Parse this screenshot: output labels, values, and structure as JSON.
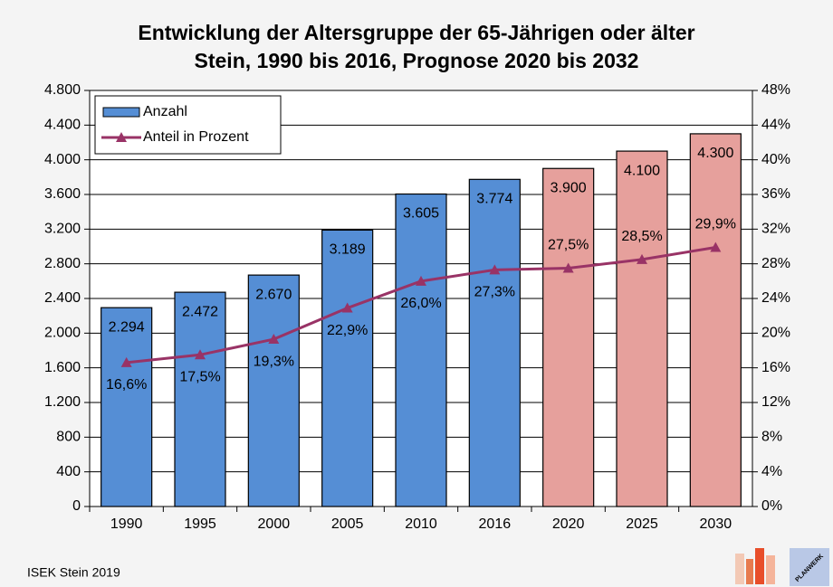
{
  "chart_data": {
    "type": "bar_line",
    "title": "Entwicklung der Altersgruppe der 65-Jährigen oder älter",
    "subtitle": "Stein, 1990 bis 2016, Prognose 2020 bis 2032",
    "categories": [
      "1990",
      "1995",
      "2000",
      "2005",
      "2010",
      "2016",
      "2020",
      "2025",
      "2030"
    ],
    "series": [
      {
        "name": "Anzahl",
        "type": "bar",
        "color": "#558ed5",
        "colors": [
          "#558ed5",
          "#558ed5",
          "#558ed5",
          "#558ed5",
          "#558ed5",
          "#558ed5",
          "#e6a09c",
          "#e6a09c",
          "#e6a09c"
        ],
        "values": [
          2294,
          2472,
          2670,
          3189,
          3605,
          3774,
          3900,
          4100,
          4300
        ],
        "value_labels": [
          "2.294",
          "2.472",
          "2.670",
          "3.189",
          "3.605",
          "3.774",
          "3.900",
          "4.100",
          "4.300"
        ]
      },
      {
        "name": "Anteil in Prozent",
        "type": "line",
        "axis": "y2",
        "color": "#993366",
        "values": [
          16.6,
          17.5,
          19.3,
          22.9,
          26.0,
          27.3,
          27.5,
          28.5,
          29.9
        ],
        "value_labels": [
          "16,6%",
          "17,5%",
          "19,3%",
          "22,9%",
          "26,0%",
          "27,3%",
          "27,5%",
          "28,5%",
          "29,9%"
        ]
      }
    ],
    "ylim": [
      0,
      4800
    ],
    "yticks": [
      0,
      400,
      800,
      {
        "value": 1200,
        "label": "1.200"
      },
      {
        "value": 1600,
        "label": "1.600"
      },
      {
        "value": 2000,
        "label": "2.000"
      },
      {
        "value": 2400,
        "label": "2.400"
      },
      {
        "value": 2800,
        "label": "2.800"
      },
      {
        "value": 3200,
        "label": "3.200"
      },
      {
        "value": 3600,
        "label": "3.600"
      },
      {
        "value": 4000,
        "label": "4.000"
      },
      {
        "value": 4400,
        "label": "4.400"
      },
      {
        "value": 4800,
        "label": "4.800"
      }
    ],
    "y2lim": [
      0,
      48
    ],
    "y2ticks": [
      {
        "value": 0,
        "label": "0%"
      },
      {
        "value": 4,
        "label": "4%"
      },
      {
        "value": 8,
        "label": "8%"
      },
      {
        "value": 12,
        "label": "12%"
      },
      {
        "value": 16,
        "label": "16%"
      },
      {
        "value": 20,
        "label": "20%"
      },
      {
        "value": 24,
        "label": "24%"
      },
      {
        "value": 28,
        "label": "28%"
      },
      {
        "value": 32,
        "label": "32%"
      },
      {
        "value": 36,
        "label": "36%"
      },
      {
        "value": 40,
        "label": "40%"
      },
      {
        "value": 44,
        "label": "44%"
      },
      {
        "value": 48,
        "label": "48%"
      }
    ],
    "grid": true,
    "legend": "top-left",
    "footer": "ISEK Stein 2019",
    "logo_text": "PLANWERK"
  }
}
